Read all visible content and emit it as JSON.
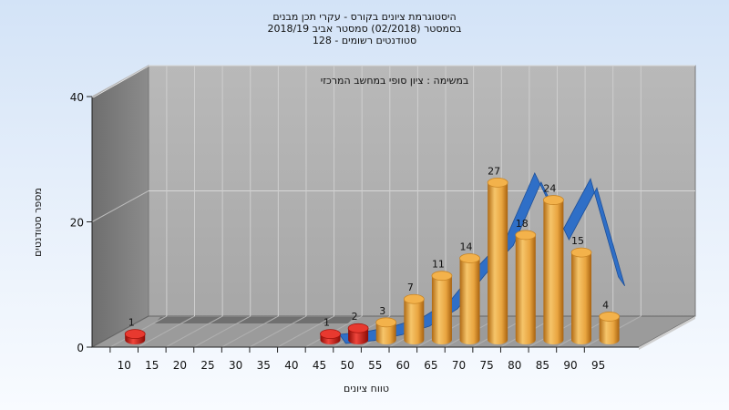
{
  "chart_data": {
    "type": "bar",
    "title_lines": [
      "היסטוגרמת ציונים בקורס - עקרי תכן מבנים",
      "בסמסטר  (02/2018)  סמסטר אביב 2018/19",
      "סטודנטים רשומים - 128"
    ],
    "annotation": "במשימה : ציון סופי במחשב המרכזי",
    "xlabel": "טווח ציונים",
    "ylabel": "מספר סטודנטים",
    "ylim": [
      0,
      40
    ],
    "yticks": [
      "0",
      "20",
      "40"
    ],
    "categories": [
      "10",
      "15",
      "20",
      "25",
      "30",
      "35",
      "40",
      "45",
      "50",
      "55",
      "60",
      "65",
      "70",
      "75",
      "80",
      "85",
      "90",
      "95"
    ],
    "values": [
      1,
      0,
      0,
      0,
      0,
      0,
      0,
      1,
      2,
      3,
      7,
      11,
      14,
      27,
      18,
      24,
      15,
      4
    ],
    "bar_colors": {
      "fail": "#d41a12",
      "pass": "#e39a2e"
    },
    "fail_threshold": 55,
    "curve": {
      "name": "distribution curve",
      "color": "#2f6fc7",
      "values": [
        0,
        0,
        0,
        0,
        0,
        0,
        0,
        0,
        0.5,
        1.5,
        3,
        6,
        12,
        17,
        28,
        18,
        27,
        10
      ]
    },
    "grid": true
  }
}
